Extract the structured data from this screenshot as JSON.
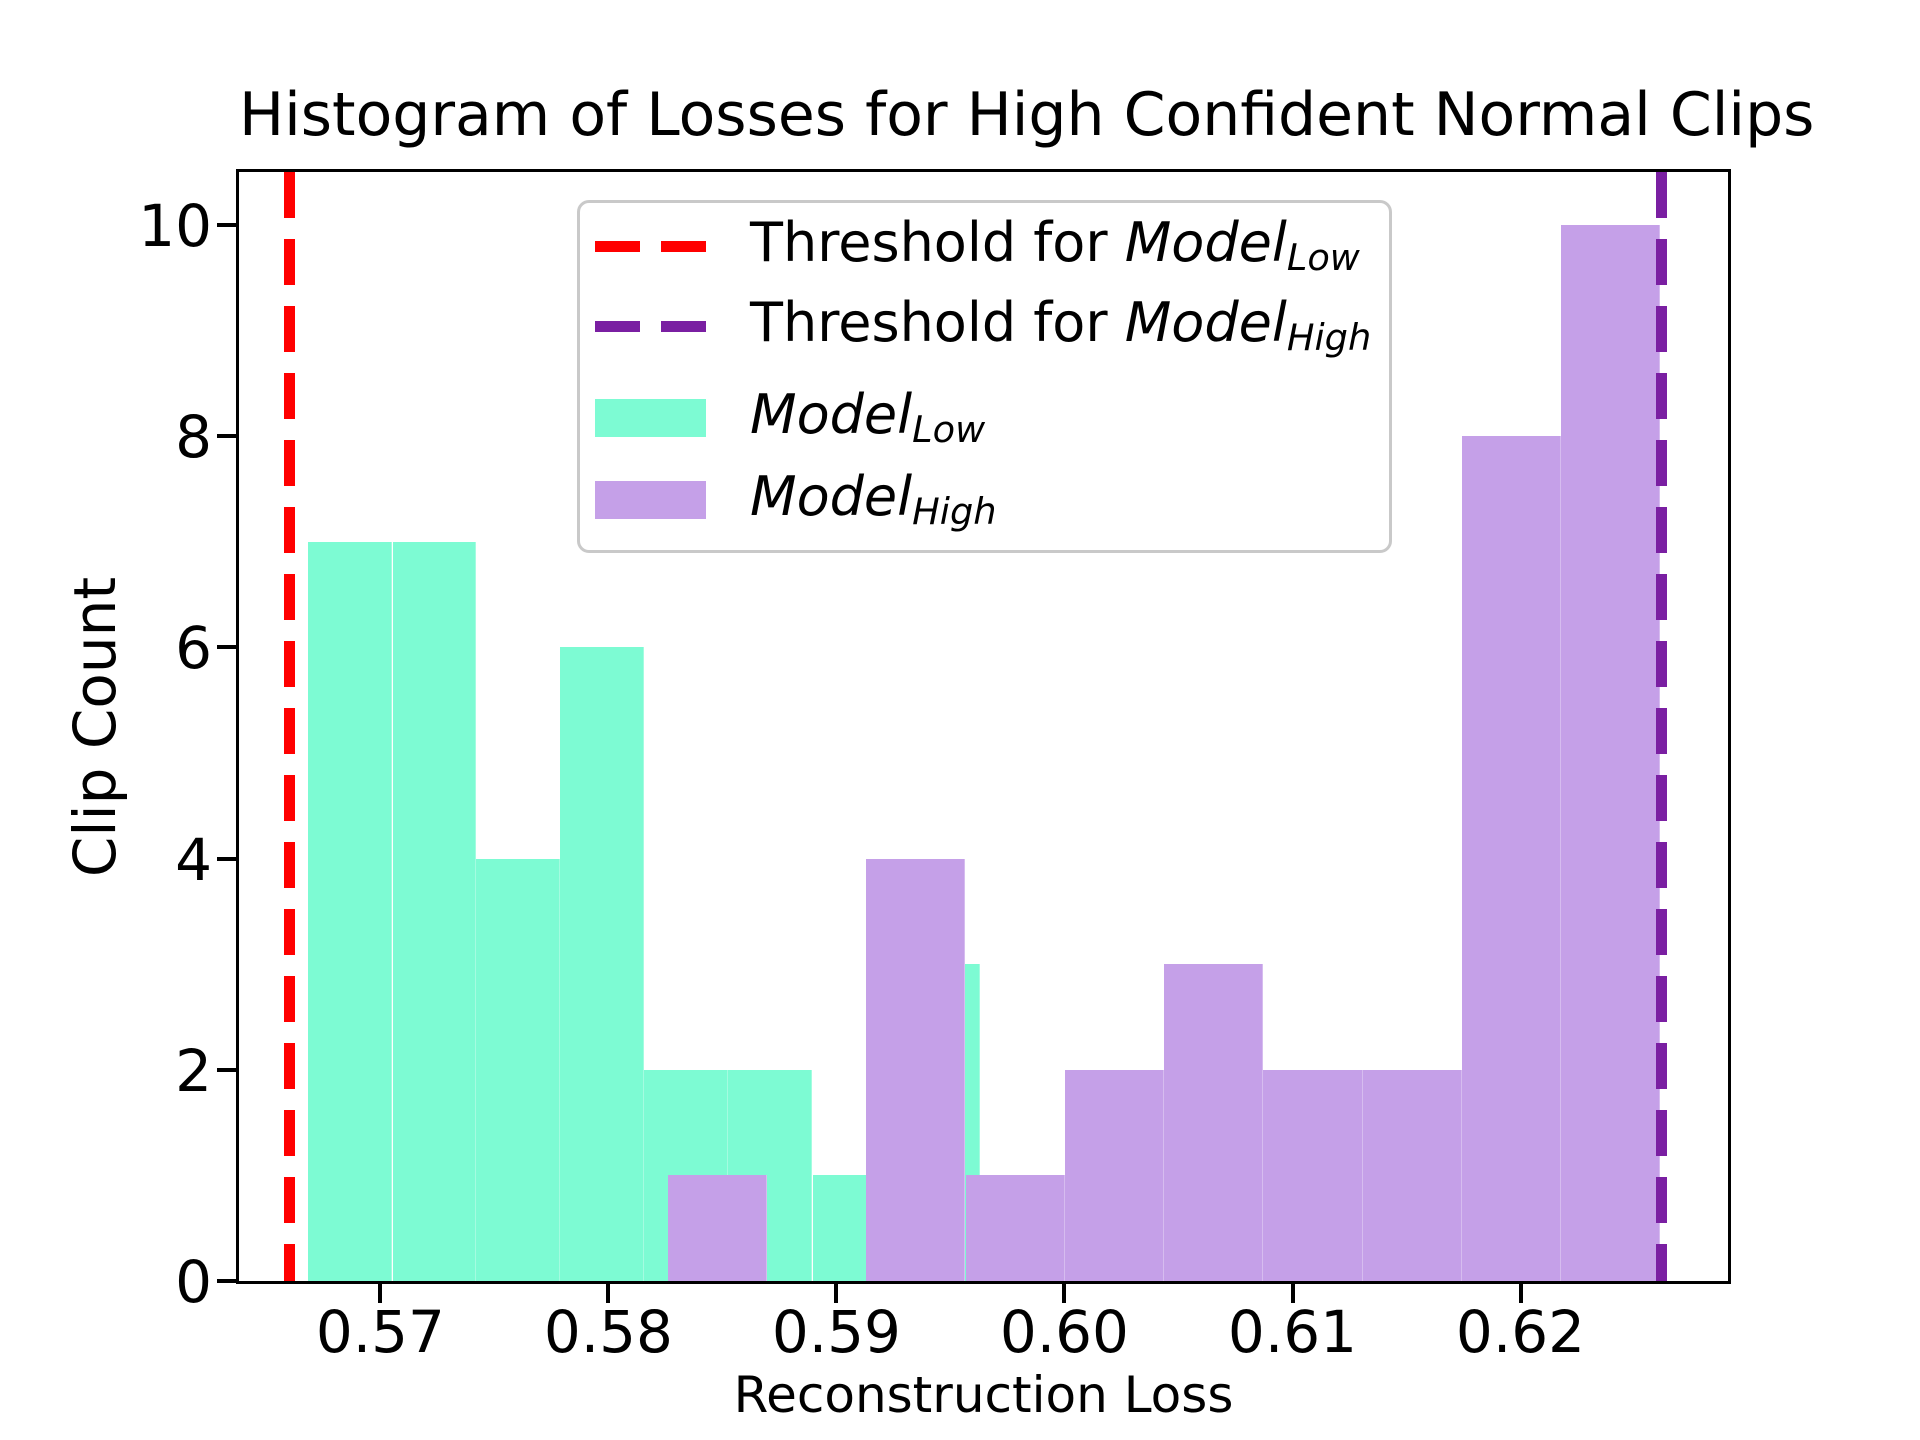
{
  "chart_data": {
    "type": "histogram",
    "title": "Histogram of Losses for High Confident Normal Clips",
    "xlabel": "Reconstruction Loss",
    "ylabel": "Clip Count",
    "xlim": [
      0.5638,
      0.6291
    ],
    "ylim": [
      0,
      10.5
    ],
    "grid": false,
    "x_ticks": {
      "values": [
        0.57,
        0.58,
        0.59,
        0.6,
        0.61,
        0.62
      ],
      "labels": [
        "0.57",
        "0.58",
        "0.59",
        "0.60",
        "0.61",
        "0.62"
      ]
    },
    "y_ticks": {
      "values": [
        0,
        2,
        4,
        6,
        8,
        10
      ],
      "labels": [
        "0",
        "2",
        "4",
        "6",
        "8",
        "10"
      ]
    },
    "series": [
      {
        "name": "Model_Low",
        "label_main": "Model",
        "label_sub": "Low",
        "color": "#7DFBD3",
        "bin_edges": [
          0.56684,
          0.57053,
          0.57421,
          0.57789,
          0.58158,
          0.58526,
          0.58895,
          0.59263,
          0.59632
        ],
        "counts": [
          7,
          7,
          4,
          6,
          2,
          2,
          1,
          3
        ]
      },
      {
        "name": "Model_High",
        "label_main": "Model",
        "label_sub": "High",
        "color": "#C5A0E8",
        "bin_edges": [
          0.58259,
          0.58694,
          0.5913,
          0.59566,
          0.60001,
          0.60437,
          0.60872,
          0.61308,
          0.61743,
          0.62179,
          0.62614
        ],
        "counts": [
          1,
          0,
          4,
          1,
          2,
          3,
          2,
          2,
          8,
          10
        ]
      }
    ],
    "thresholds": [
      {
        "name": "Threshold for Model_Low",
        "x": 0.566,
        "color": "#FF0000",
        "style": "dashed"
      },
      {
        "name": "Threshold for Model_High",
        "x": 0.6262,
        "color": "#7A1FA2",
        "style": "dashed"
      }
    ],
    "legend": {
      "position": "upper-center-left",
      "items": [
        {
          "marker": "dash",
          "color": "#FF0000",
          "prefix": "Threshold for ",
          "model": "Model",
          "sub": "Low"
        },
        {
          "marker": "dash",
          "color": "#7A1FA2",
          "prefix": "Threshold for ",
          "model": "Model",
          "sub": "High"
        },
        {
          "marker": "patch",
          "color": "#7DFBD3",
          "prefix": "",
          "model": "Model",
          "sub": "Low"
        },
        {
          "marker": "patch",
          "color": "#C5A0E8",
          "prefix": "",
          "model": "Model",
          "sub": "High"
        }
      ]
    }
  }
}
